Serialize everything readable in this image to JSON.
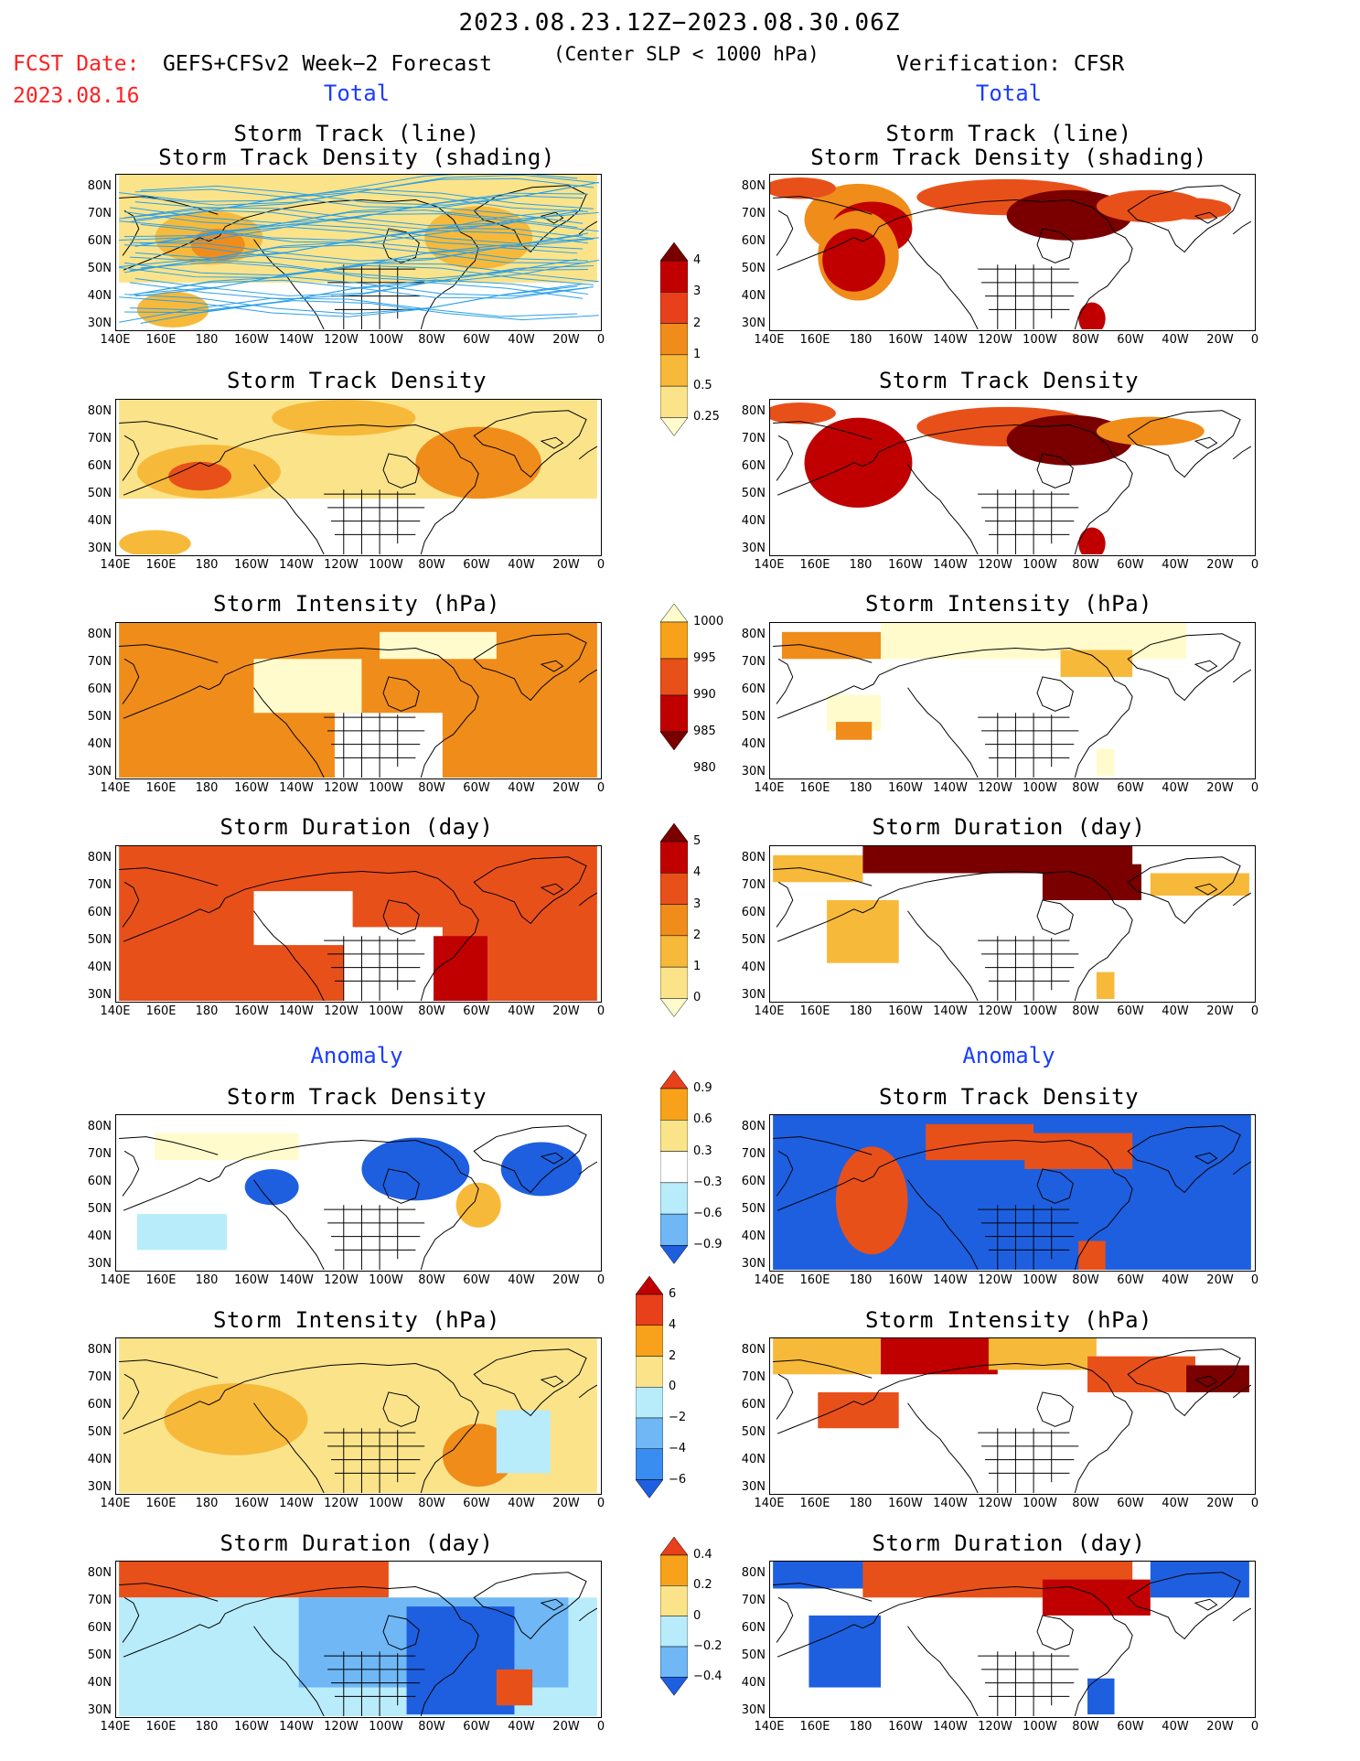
{
  "header": {
    "period": "2023.08.23.12Z−2023.08.30.06Z",
    "fcst_label": "FCST Date:",
    "fcst_model": "GEFS+CFSv2 Week−2 Forecast",
    "fcst_date": "2023.08.16",
    "criterion": "(Center SLP < 1000 hPa)",
    "verification": "Verification: CFSR"
  },
  "sections": {
    "total_left": "Total",
    "total_right": "Total",
    "anomaly_left": "Anomaly",
    "anomaly_right": "Anomaly"
  },
  "panel_titles": {
    "track_line": "Storm Track (line)",
    "track_shading": "Storm Track Density (shading)",
    "track_density": "Storm Track Density",
    "intensity": "Storm Intensity (hPa)",
    "duration": "Storm Duration (day)"
  },
  "axes": {
    "lat_labels": [
      "80N",
      "70N",
      "60N",
      "50N",
      "40N",
      "30N"
    ],
    "lon_labels": [
      "140E",
      "160E",
      "180",
      "160W",
      "140W",
      "120W",
      "100W",
      "80W",
      "60W",
      "40W",
      "20W",
      "0"
    ]
  },
  "colorbars": {
    "density_total": {
      "labels": [
        "4",
        "3",
        "2",
        "1",
        "0.5",
        "0.25"
      ],
      "colors": [
        "#7a0000",
        "#c00000",
        "#e8401a",
        "#f08c1a",
        "#f7b93a",
        "#fbe38a",
        "#fffbcc"
      ]
    },
    "intensity_total": {
      "labels": [
        "1000",
        "995",
        "990",
        "985",
        "980"
      ],
      "colors": [
        "#fffbcc",
        "#f7a21a",
        "#e8501a",
        "#c00000",
        "#7a0000"
      ]
    },
    "duration_total": {
      "labels": [
        "5",
        "4",
        "3",
        "2",
        "1",
        "0"
      ],
      "colors": [
        "#7a0000",
        "#c00000",
        "#e8501a",
        "#f08c1a",
        "#f7b93a",
        "#fbe38a",
        "#fffbcc"
      ]
    },
    "density_anom": {
      "labels": [
        "0.9",
        "0.6",
        "0.3",
        "−0.3",
        "−0.6",
        "−0.9"
      ],
      "colors": [
        "#e8401a",
        "#f7a21a",
        "#fbe38a",
        "#ffffff",
        "#b8ecfb",
        "#6fb7f5",
        "#1e5fe0"
      ]
    },
    "intensity_anom": {
      "labels": [
        "6",
        "4",
        "2",
        "0",
        "−2",
        "−4",
        "−6"
      ],
      "colors": [
        "#c00000",
        "#e8401a",
        "#f7a21a",
        "#fbe38a",
        "#b8ecfb",
        "#6fb7f5",
        "#3a8df0",
        "#1e5fe0"
      ]
    },
    "duration_anom": {
      "labels": [
        "0.4",
        "0.2",
        "0",
        "−0.2",
        "−0.4"
      ],
      "colors": [
        "#e8401a",
        "#f7a21a",
        "#fbe38a",
        "#b8ecfb",
        "#6fb7f5",
        "#1e5fe0"
      ]
    }
  },
  "palette": {
    "land_outline": "#000000",
    "track_line": "#2aa0e8",
    "blue_text": "#1a3cff",
    "red_text": "#ff2020"
  }
}
